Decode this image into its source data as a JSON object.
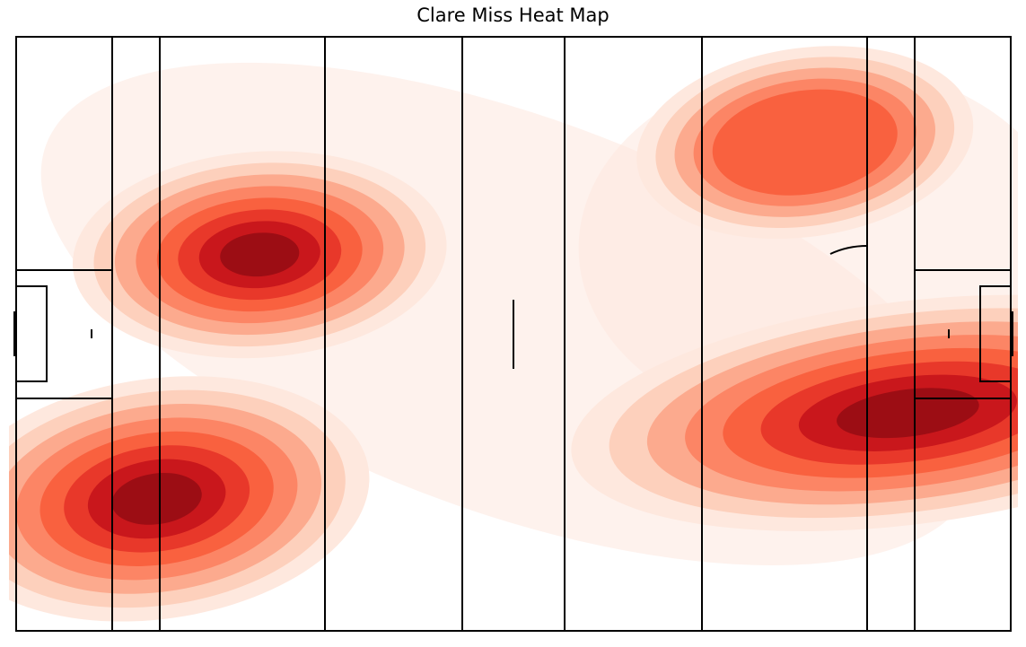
{
  "chart_data": {
    "type": "heatmap",
    "title": "Clare Miss Heat Map",
    "xlabel": "",
    "ylabel": "",
    "xlim": [
      0,
      145
    ],
    "ylim": [
      0,
      90
    ],
    "grid": false,
    "legend": "none",
    "colormap": "Reds",
    "density_levels": 8,
    "hotspots": [
      {
        "x": 35.5,
        "y": 57,
        "sx": 10.5,
        "sy": 6.0,
        "rot": -4,
        "w": 1.0
      },
      {
        "x": 20.5,
        "y": 20,
        "sx": 12.0,
        "sy": 7.0,
        "rot": -8,
        "w": 1.0
      },
      {
        "x": 130.0,
        "y": 33,
        "sx": 19.0,
        "sy": 6.5,
        "rot": -7,
        "w": 1.0
      },
      {
        "x": 115.0,
        "y": 74,
        "sx": 9.5,
        "sy": 5.5,
        "rot": -8,
        "w": 0.62
      }
    ]
  },
  "colors": {
    "lines": "#000000",
    "levels": [
      "#fee8de",
      "#fdd0bc",
      "#fcaa8e",
      "#fc8565",
      "#f9613f",
      "#e8382a",
      "#c9171c",
      "#9c0d14"
    ]
  }
}
